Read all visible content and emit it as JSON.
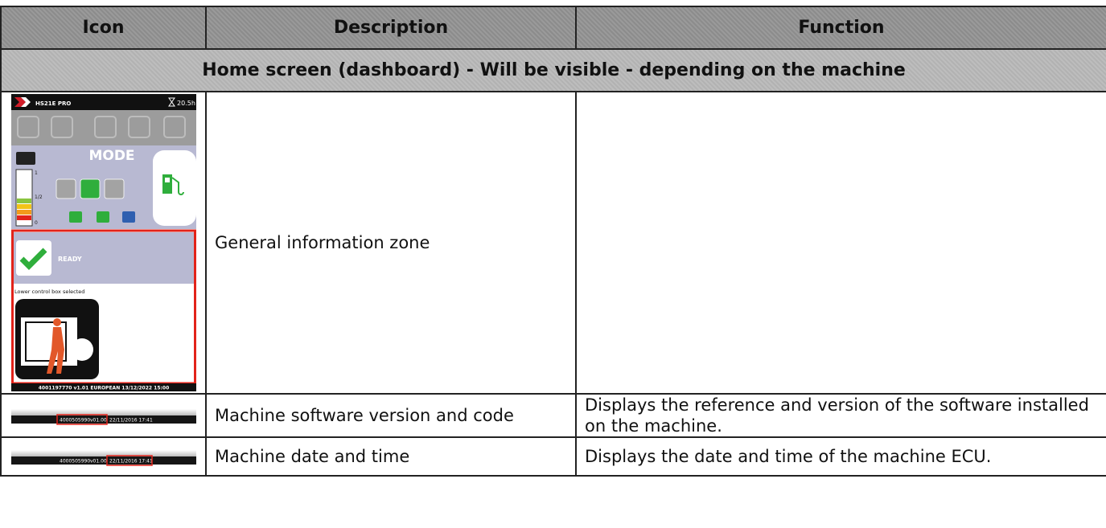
{
  "table": {
    "headers": [
      "Icon",
      "Description",
      "Function"
    ],
    "section": "Home screen (dashboard)  -  Will be visible - depending on the machine",
    "rows": [
      {
        "icon": {
          "model": "HS21E PRO",
          "hours": "20.5h",
          "mode": "MODE",
          "scale": [
            "1",
            "1/2",
            "0"
          ],
          "status": "READY",
          "message": "Lower control box selected",
          "footer": "4001197770  v1.01  EUROPEAN  13/12/2022  15:00"
        },
        "description": "General information zone"
      },
      {
        "icon": {
          "code": "4000505990",
          "version": "v01.00",
          "datetime": "22/11/2016 17:41"
        },
        "description": "Machine software version and code",
        "function": "Displays the reference and version of the software installed on the machine."
      },
      {
        "icon": {
          "code": "4000505990",
          "version": "v01.00",
          "datetime": "22/11/2016 17:41"
        },
        "description": "Machine date and time",
        "function": "Displays the date and time of the machine ECU."
      }
    ]
  }
}
